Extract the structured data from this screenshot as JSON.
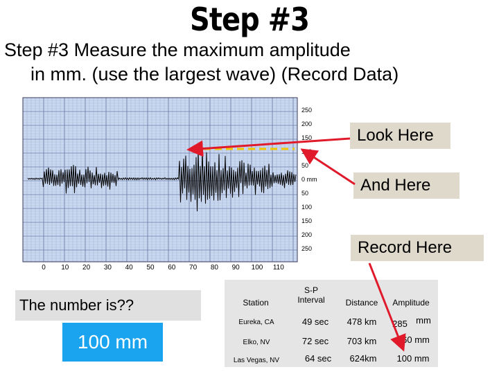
{
  "title": "Step #3",
  "instructions": {
    "line1": "Step #3   Measure the maximum amplitude",
    "line2": "in mm. (use the largest wave) (Record Data)"
  },
  "seismogram": {
    "y_labels": [
      "250",
      "200",
      "150",
      "100",
      "50",
      "0 mm",
      "50",
      "100",
      "150",
      "200",
      "250"
    ],
    "x_labels": [
      "0",
      "10",
      "20",
      "30",
      "40",
      "50",
      "60",
      "70",
      "80",
      "90",
      "100",
      "110"
    ]
  },
  "callouts": {
    "look_here": "Look Here",
    "and_here": "And Here",
    "record_here": "Record Here"
  },
  "question": "The number is??",
  "answer": "100 mm",
  "table": {
    "headers": {
      "station": "Station",
      "sp_interval_line1": "S-P",
      "sp_interval_line2": "Interval",
      "distance": "Distance",
      "amplitude": "Amplitude"
    },
    "rows": [
      {
        "station": "Eureka, CA",
        "interval": "49 sec",
        "distance": "478 km",
        "amplitude": "285",
        "amplitude_unit": "mm"
      },
      {
        "station": "Elko, NV",
        "interval": "72 sec",
        "distance": "703 km",
        "amplitude": "60 mm",
        "amplitude_unit": ""
      },
      {
        "station": "Las Vegas, NV",
        "interval": "64 sec",
        "distance": "624km",
        "amplitude": "100 mm",
        "amplitude_unit": ""
      }
    ]
  },
  "colors": {
    "grid_background": "#c8d8f0",
    "grid_line": "#8a96b8",
    "answer_box": "#1aa3ee",
    "callout_bg": "#dfd9cc",
    "arrow": "#e01a2a",
    "dash": "#f0c800"
  }
}
